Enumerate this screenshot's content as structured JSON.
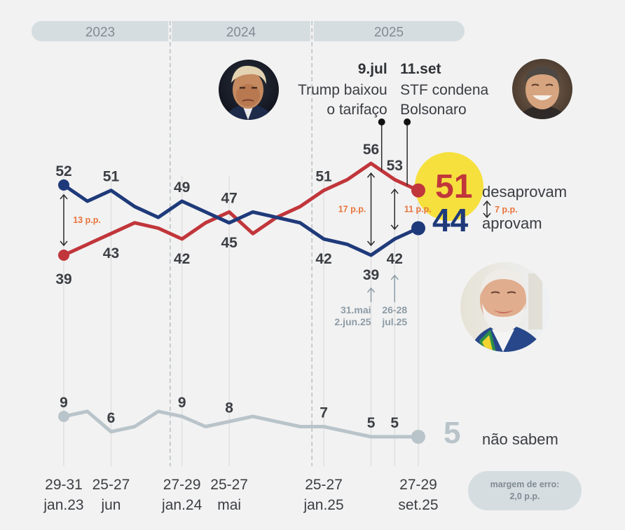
{
  "year_bar": {
    "years": [
      "2023",
      "2024",
      "2025"
    ]
  },
  "events": [
    {
      "date": "9.jul",
      "lines": [
        "Trump baixou",
        "o tarifaço"
      ],
      "at_index": 13.45,
      "align": "right"
    },
    {
      "date": "11.set",
      "lines": [
        "STF condena",
        "Bolsonaro"
      ],
      "at_index": 14.53,
      "align": "left"
    }
  ],
  "chart_data": {
    "type": "line",
    "title": "",
    "xlabel": "",
    "ylabel": "",
    "unit": "%",
    "x_ticks": [
      {
        "index": 0,
        "lines": [
          "29-31",
          "jan.23"
        ]
      },
      {
        "index": 2,
        "lines": [
          "25-27",
          "jun"
        ]
      },
      {
        "index": 5,
        "lines": [
          "27-29",
          "jan.24"
        ]
      },
      {
        "index": 7,
        "lines": [
          "25-27",
          "mai"
        ]
      },
      {
        "index": 11,
        "lines": [
          "25-27",
          "jan.25"
        ]
      },
      {
        "index": 15,
        "lines": [
          "27-29",
          "set.25"
        ]
      }
    ],
    "year_separators": [
      4.5,
      10.5
    ],
    "series": [
      {
        "name": "desaprovam",
        "color": "#c1363b",
        "panel": "upper",
        "values": [
          39,
          41,
          43,
          45,
          44,
          42,
          45,
          47,
          43,
          46,
          48,
          51,
          53,
          56,
          53,
          51
        ],
        "point_labels": [
          {
            "index": 0,
            "position": "below"
          },
          {
            "index": 2,
            "position": "below"
          },
          {
            "index": 5,
            "position": "below"
          },
          {
            "index": 7,
            "position": "above"
          },
          {
            "index": 11,
            "position": "above"
          },
          {
            "index": 13,
            "position": "above"
          },
          {
            "index": 14,
            "position": "above"
          }
        ]
      },
      {
        "name": "aprovam",
        "color": "#1f3a7a",
        "panel": "upper",
        "values": [
          52,
          49,
          51,
          48,
          46,
          49,
          47,
          45,
          47,
          46,
          45,
          42,
          41,
          39,
          42,
          44
        ],
        "point_labels": [
          {
            "index": 0,
            "position": "above"
          },
          {
            "index": 2,
            "position": "above"
          },
          {
            "index": 5,
            "position": "above"
          },
          {
            "index": 7,
            "position": "below"
          },
          {
            "index": 11,
            "position": "below"
          },
          {
            "index": 13,
            "position": "below"
          },
          {
            "index": 14,
            "position": "below"
          }
        ]
      },
      {
        "name": "não sabem",
        "color": "#b9c4ca",
        "panel": "lower",
        "values": [
          9,
          10,
          6,
          7,
          10,
          9,
          7,
          8,
          9,
          8,
          7,
          7,
          6,
          5,
          5,
          5
        ],
        "point_labels": [
          {
            "index": 0,
            "position": "above"
          },
          {
            "index": 2,
            "position": "above"
          },
          {
            "index": 5,
            "position": "above"
          },
          {
            "index": 7,
            "position": "above"
          },
          {
            "index": 11,
            "position": "above"
          },
          {
            "index": 13,
            "position": "above"
          },
          {
            "index": 14,
            "position": "above"
          }
        ]
      }
    ],
    "gap_annotations": [
      {
        "index": 0,
        "label": "13 p.p.",
        "side": "right"
      },
      {
        "index": 13,
        "label": "17 p.p.",
        "side": "left"
      },
      {
        "index": 14,
        "label": "11 p.p.",
        "side": "right"
      },
      {
        "index": 15,
        "label": "7 p.p.",
        "side": "legend"
      }
    ],
    "survey_notes": [
      {
        "index": 13,
        "lines": [
          "31.mai",
          "2.jun.25"
        ],
        "align": "right"
      },
      {
        "index": 14,
        "lines": [
          "26-28",
          "jul.25"
        ],
        "align": "center"
      }
    ],
    "highlight_color": "#f6e03e",
    "annotation_color": "#e8743b",
    "legend": "right"
  },
  "margin_of_error": {
    "label": "margem de erro:",
    "value": "2,0 p.p."
  }
}
